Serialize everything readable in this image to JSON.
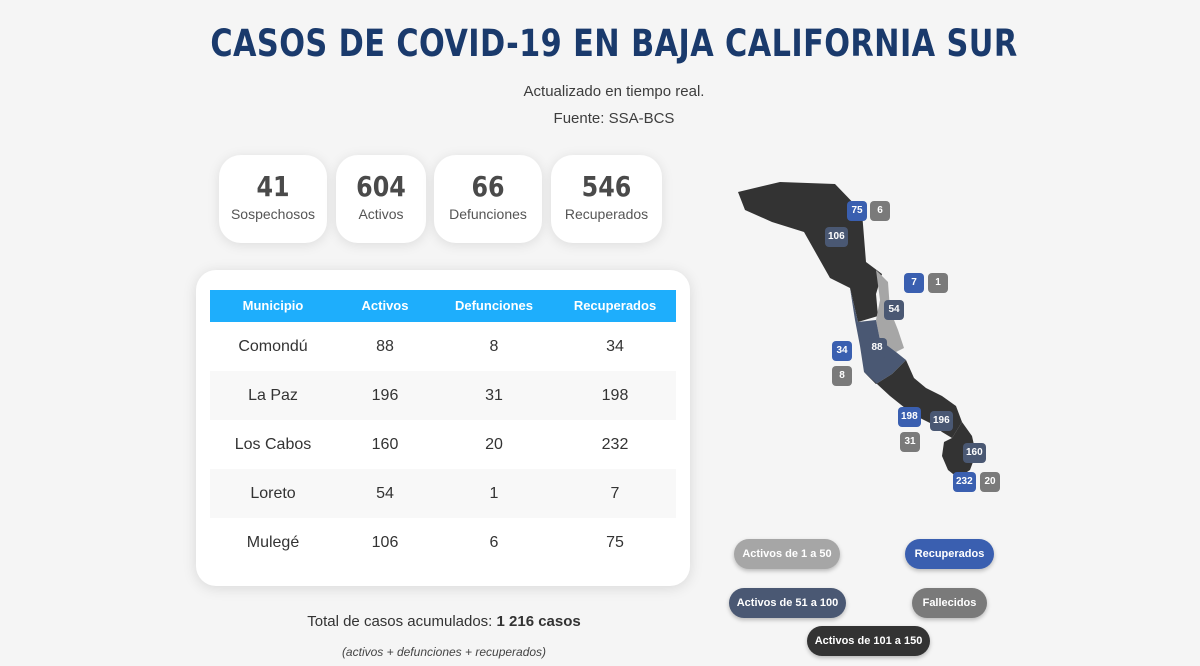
{
  "header": {
    "title": "CASOS DE COVID-19 EN BAJA CALIFORNIA SUR",
    "subtitle": "Actualizado en tiempo real.",
    "source": "Fuente: SSA-BCS"
  },
  "stats": [
    {
      "value": "41",
      "label": "Sospechosos"
    },
    {
      "value": "604",
      "label": "Activos"
    },
    {
      "value": "66",
      "label": "Defunciones"
    },
    {
      "value": "546",
      "label": "Recuperados"
    }
  ],
  "table": {
    "headers": [
      "Municipio",
      "Activos",
      "Defunciones",
      "Recuperados"
    ],
    "rows": [
      {
        "municipio": "Comondú",
        "activos": "88",
        "defunciones": "8",
        "recuperados": "34"
      },
      {
        "municipio": "La Paz",
        "activos": "196",
        "defunciones": "31",
        "recuperados": "198"
      },
      {
        "municipio": "Los Cabos",
        "activos": "160",
        "defunciones": "20",
        "recuperados": "232"
      },
      {
        "municipio": "Loreto",
        "activos": "54",
        "defunciones": "1",
        "recuperados": "7"
      },
      {
        "municipio": "Mulegé",
        "activos": "106",
        "defunciones": "6",
        "recuperados": "75"
      }
    ]
  },
  "totals": {
    "label": "Total de casos acumulados:",
    "value": "1 216 casos",
    "formula": "(activos + defunciones + recuperados)"
  },
  "map": {
    "mulege": {
      "activos": "106",
      "recuperados": "75",
      "defunciones": "6"
    },
    "loreto": {
      "activos": "54",
      "recuperados": "7",
      "defunciones": "1"
    },
    "comondu": {
      "activos": "88",
      "recuperados": "34",
      "defunciones": "8"
    },
    "la_paz": {
      "activos": "196",
      "recuperados": "198",
      "defunciones": "31"
    },
    "los_cabos": {
      "activos": "160",
      "recuperados": "232",
      "defunciones": "20"
    }
  },
  "legend": {
    "range_1_50": "Activos de 1 a 50",
    "recuperados": "Recuperados",
    "range_51_100": "Activos de 51 a 100",
    "fallecidos": "Fallecidos",
    "range_101_150": "Activos de 101 a 150"
  },
  "colors": {
    "title": "#1a3a6c",
    "table_header": "#1eaefc",
    "map_dark": "#333333",
    "map_mid": "#4a5873",
    "map_light": "#a6a6a6",
    "badge_blue": "#3a5fb0",
    "badge_grey": "#7a7a7a"
  }
}
